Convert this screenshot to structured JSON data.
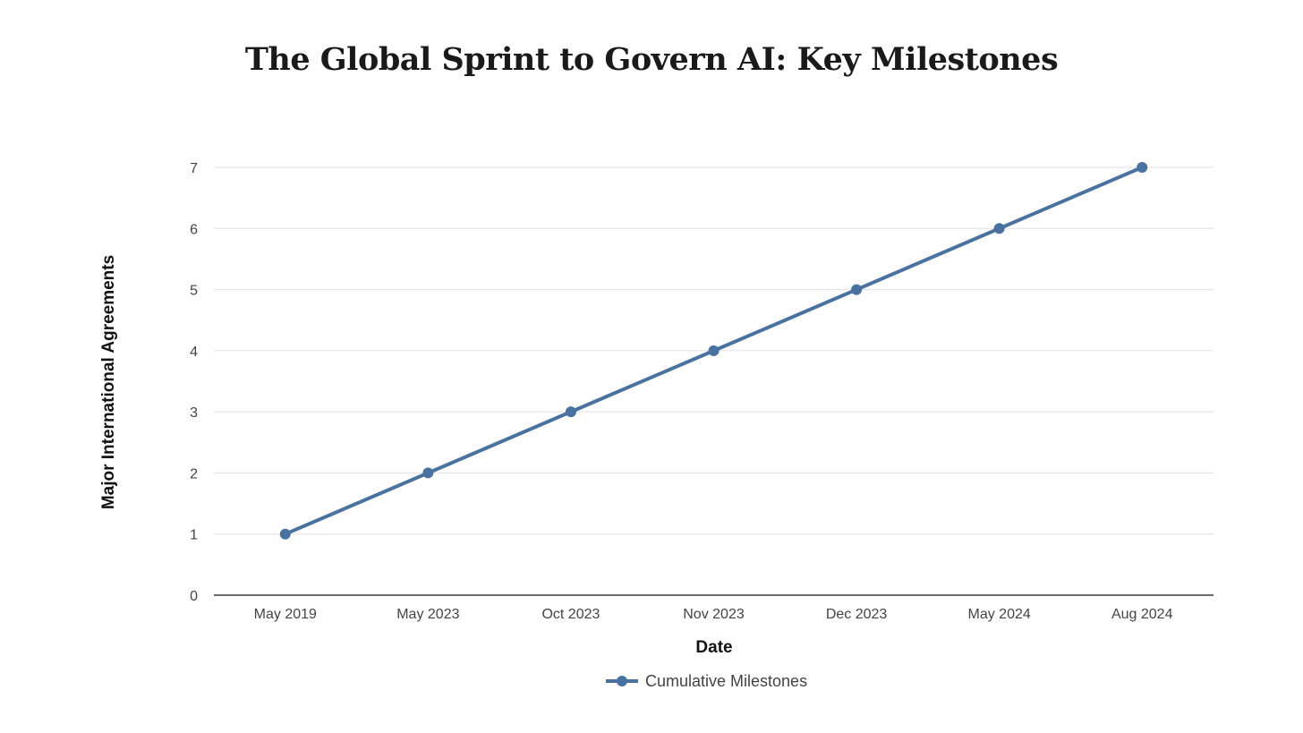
{
  "chart_data": {
    "type": "line",
    "title": "The Global Sprint to Govern AI: Key Milestones",
    "xlabel": "Date",
    "ylabel": "Major International Agreements",
    "categories": [
      "May 2019",
      "May 2023",
      "Oct 2023",
      "Nov 2023",
      "Dec 2023",
      "May 2024",
      "Aug 2024"
    ],
    "series": [
      {
        "name": "Cumulative Milestones",
        "values": [
          1,
          2,
          3,
          4,
          5,
          6,
          7
        ],
        "color": "#4a72a0"
      }
    ],
    "ylim": [
      0,
      7
    ],
    "yticks": [
      0,
      1,
      2,
      3,
      4,
      5,
      6,
      7
    ],
    "grid": true,
    "gridColor": "#e0e0e0",
    "axisColor": "#111111",
    "legend": "bottom-center"
  }
}
